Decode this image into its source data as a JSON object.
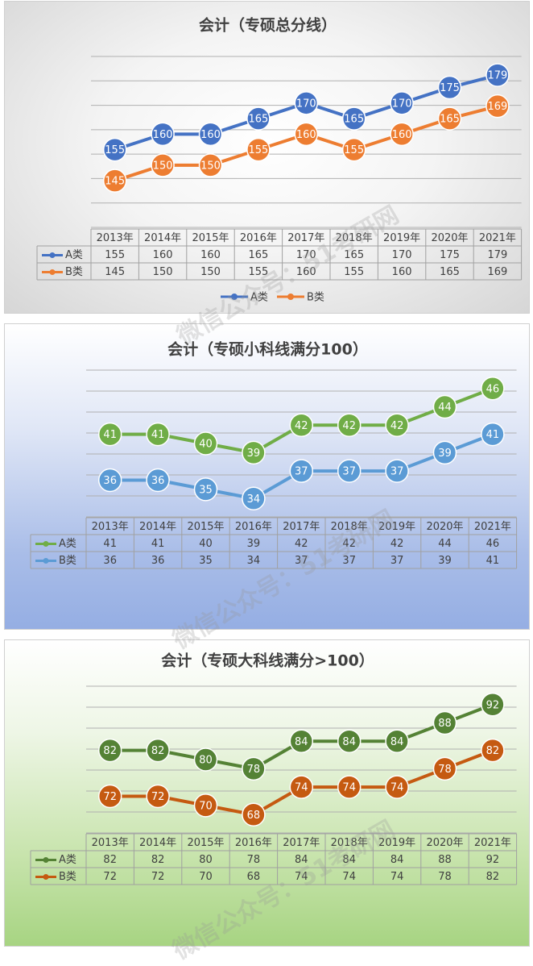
{
  "watermark": "微信公众号：51考研网",
  "chart_data": [
    {
      "type": "line",
      "title": "会计（专硕总分线）",
      "categories": [
        "2013年",
        "2014年",
        "2015年",
        "2016年",
        "2017年",
        "2018年",
        "2019年",
        "2020年",
        "2021年"
      ],
      "series": [
        {
          "name": "A类",
          "values": [
            155,
            160,
            160,
            165,
            170,
            165,
            170,
            175,
            179
          ],
          "color": "#4472c4"
        },
        {
          "name": "B类",
          "values": [
            145,
            150,
            150,
            155,
            160,
            155,
            160,
            165,
            169
          ],
          "color": "#ed7d31"
        }
      ],
      "ylim": [
        130,
        185
      ],
      "grid": true,
      "legend": "bottom",
      "data_table": true
    },
    {
      "type": "line",
      "title": "会计（专硕小科线满分100）",
      "categories": [
        "2013年",
        "2014年",
        "2015年",
        "2016年",
        "2017年",
        "2018年",
        "2019年",
        "2020年",
        "2021年"
      ],
      "series": [
        {
          "name": "A类",
          "values": [
            41,
            41,
            40,
            39,
            42,
            42,
            42,
            44,
            46
          ],
          "color": "#70ad47"
        },
        {
          "name": "B类",
          "values": [
            36,
            36,
            35,
            34,
            37,
            37,
            37,
            39,
            41
          ],
          "color": "#5b9bd5"
        }
      ],
      "ylim": [
        32,
        48
      ],
      "grid": true,
      "legend": "none",
      "data_table": true
    },
    {
      "type": "line",
      "title": "会计（专硕大科线满分>100）",
      "categories": [
        "2013年",
        "2014年",
        "2015年",
        "2016年",
        "2017年",
        "2018年",
        "2019年",
        "2020年",
        "2021年"
      ],
      "series": [
        {
          "name": "A类",
          "values": [
            82,
            82,
            80,
            78,
            84,
            84,
            84,
            88,
            92
          ],
          "color": "#548235"
        },
        {
          "name": "B类",
          "values": [
            72,
            72,
            70,
            68,
            74,
            74,
            74,
            78,
            82
          ],
          "color": "#c55a11"
        }
      ],
      "ylim": [
        64,
        96
      ],
      "grid": true,
      "legend": "none",
      "data_table": true
    }
  ]
}
